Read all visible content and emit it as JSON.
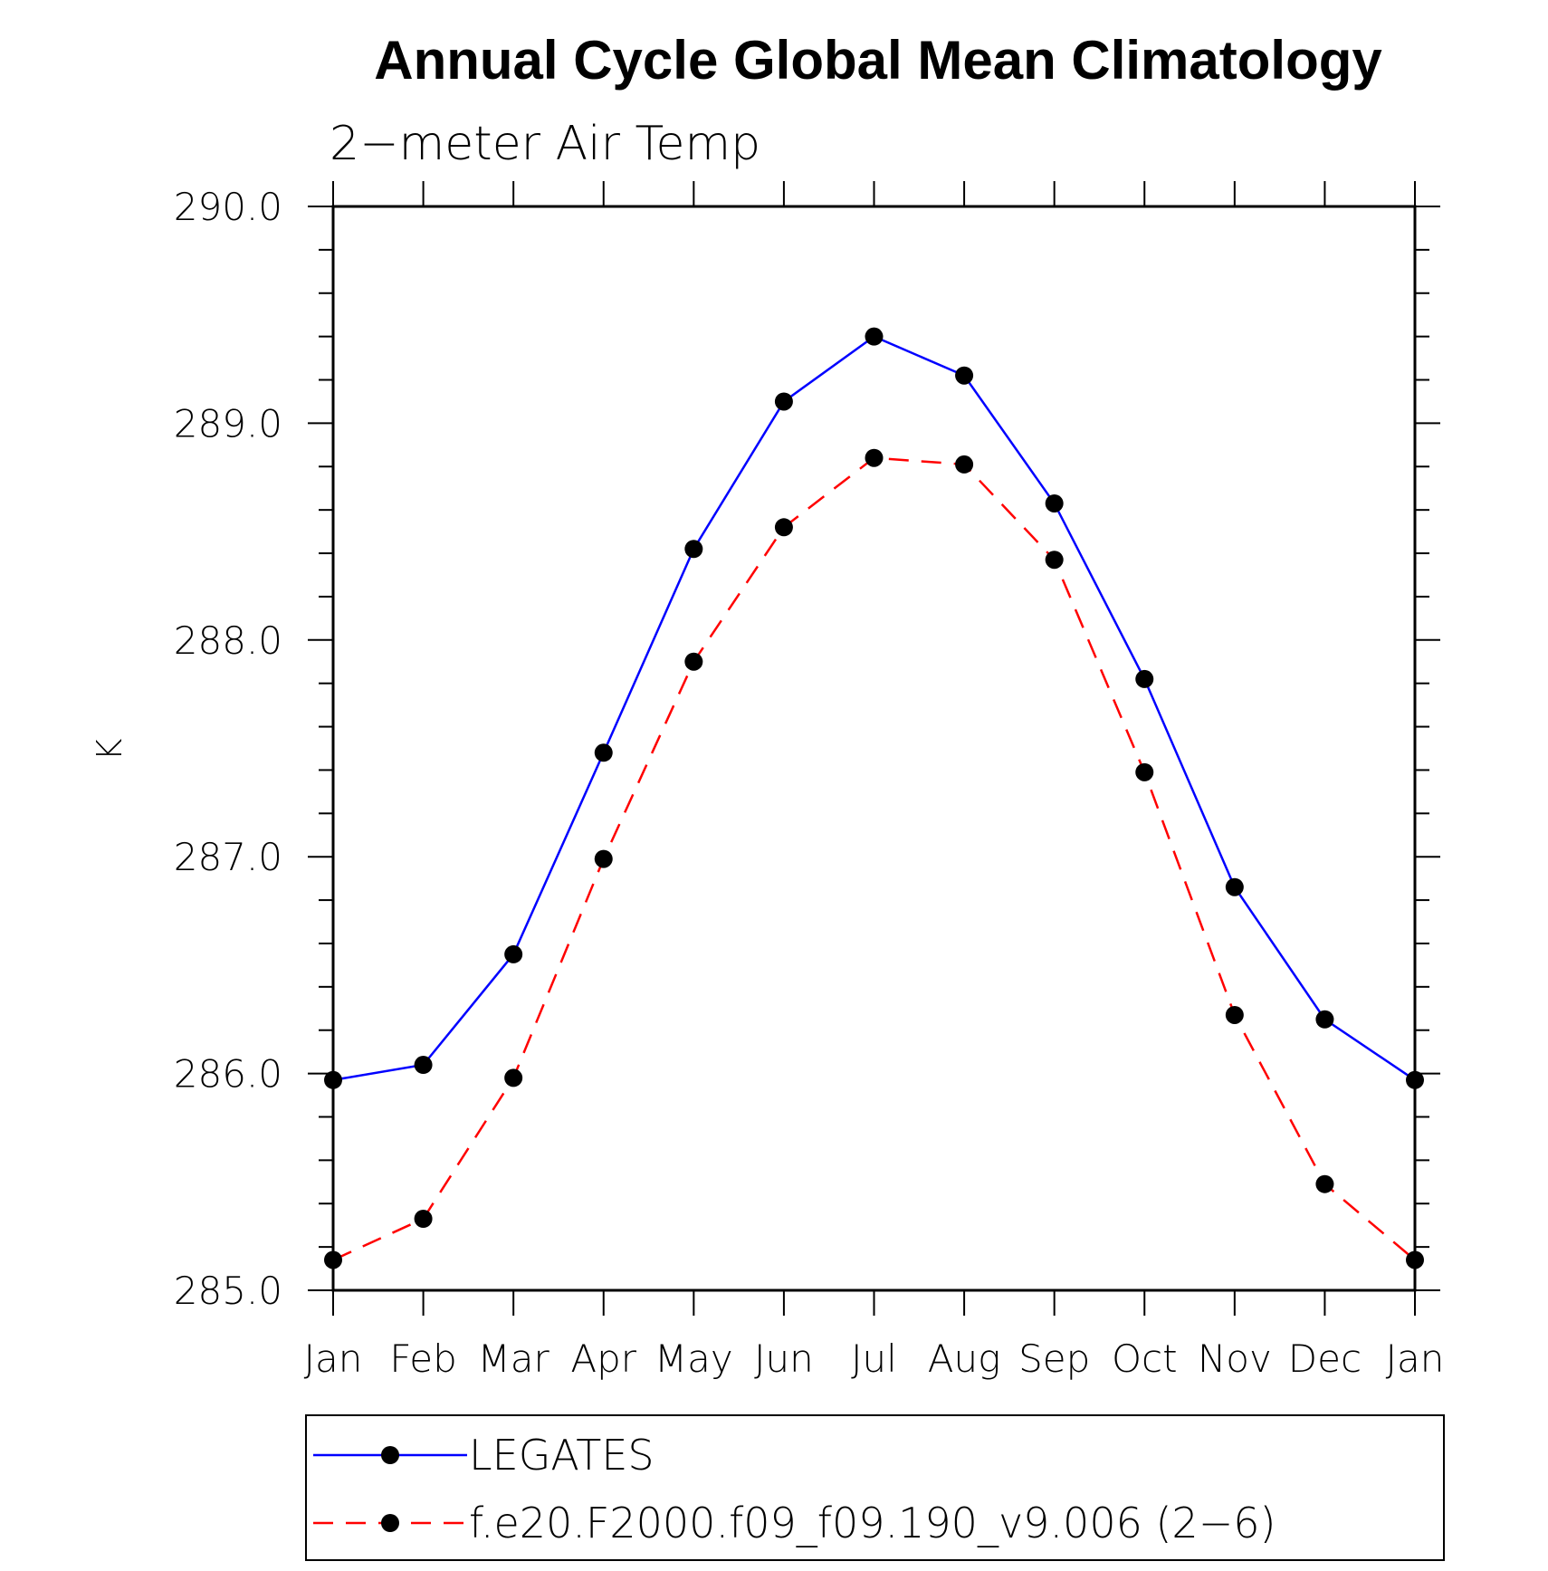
{
  "chart_data": {
    "type": "line",
    "title": "Annual Cycle Global Mean Climatology",
    "subtitle": "2−meter Air Temp",
    "ylabel": "K",
    "xlabel": "",
    "categories": [
      "Jan",
      "Feb",
      "Mar",
      "Apr",
      "May",
      "Jun",
      "Jul",
      "Aug",
      "Sep",
      "Oct",
      "Nov",
      "Dec",
      "Jan"
    ],
    "ylim": [
      285.0,
      290.0
    ],
    "yticks": [
      "285.0",
      "286.0",
      "287.0",
      "288.0",
      "289.0",
      "290.0"
    ],
    "y_minor_step": 0.2,
    "grid": false,
    "legend_position": "bottom",
    "series": [
      {
        "name": "LEGATES",
        "color": "#0000ff",
        "dash": "solid",
        "marker": "filled-circle",
        "values": [
          285.97,
          286.04,
          286.55,
          287.48,
          288.42,
          289.1,
          289.4,
          289.22,
          288.63,
          287.82,
          286.86,
          286.25,
          285.97
        ]
      },
      {
        "name": "f.e20.F2000.f09_f09.190_v9.006 (2−6)",
        "color": "#ff0000",
        "dash": "dashed",
        "marker": "filled-circle",
        "values": [
          285.14,
          285.33,
          285.98,
          286.99,
          287.9,
          288.52,
          288.84,
          288.81,
          288.37,
          287.39,
          286.27,
          285.49,
          285.14
        ]
      }
    ]
  }
}
